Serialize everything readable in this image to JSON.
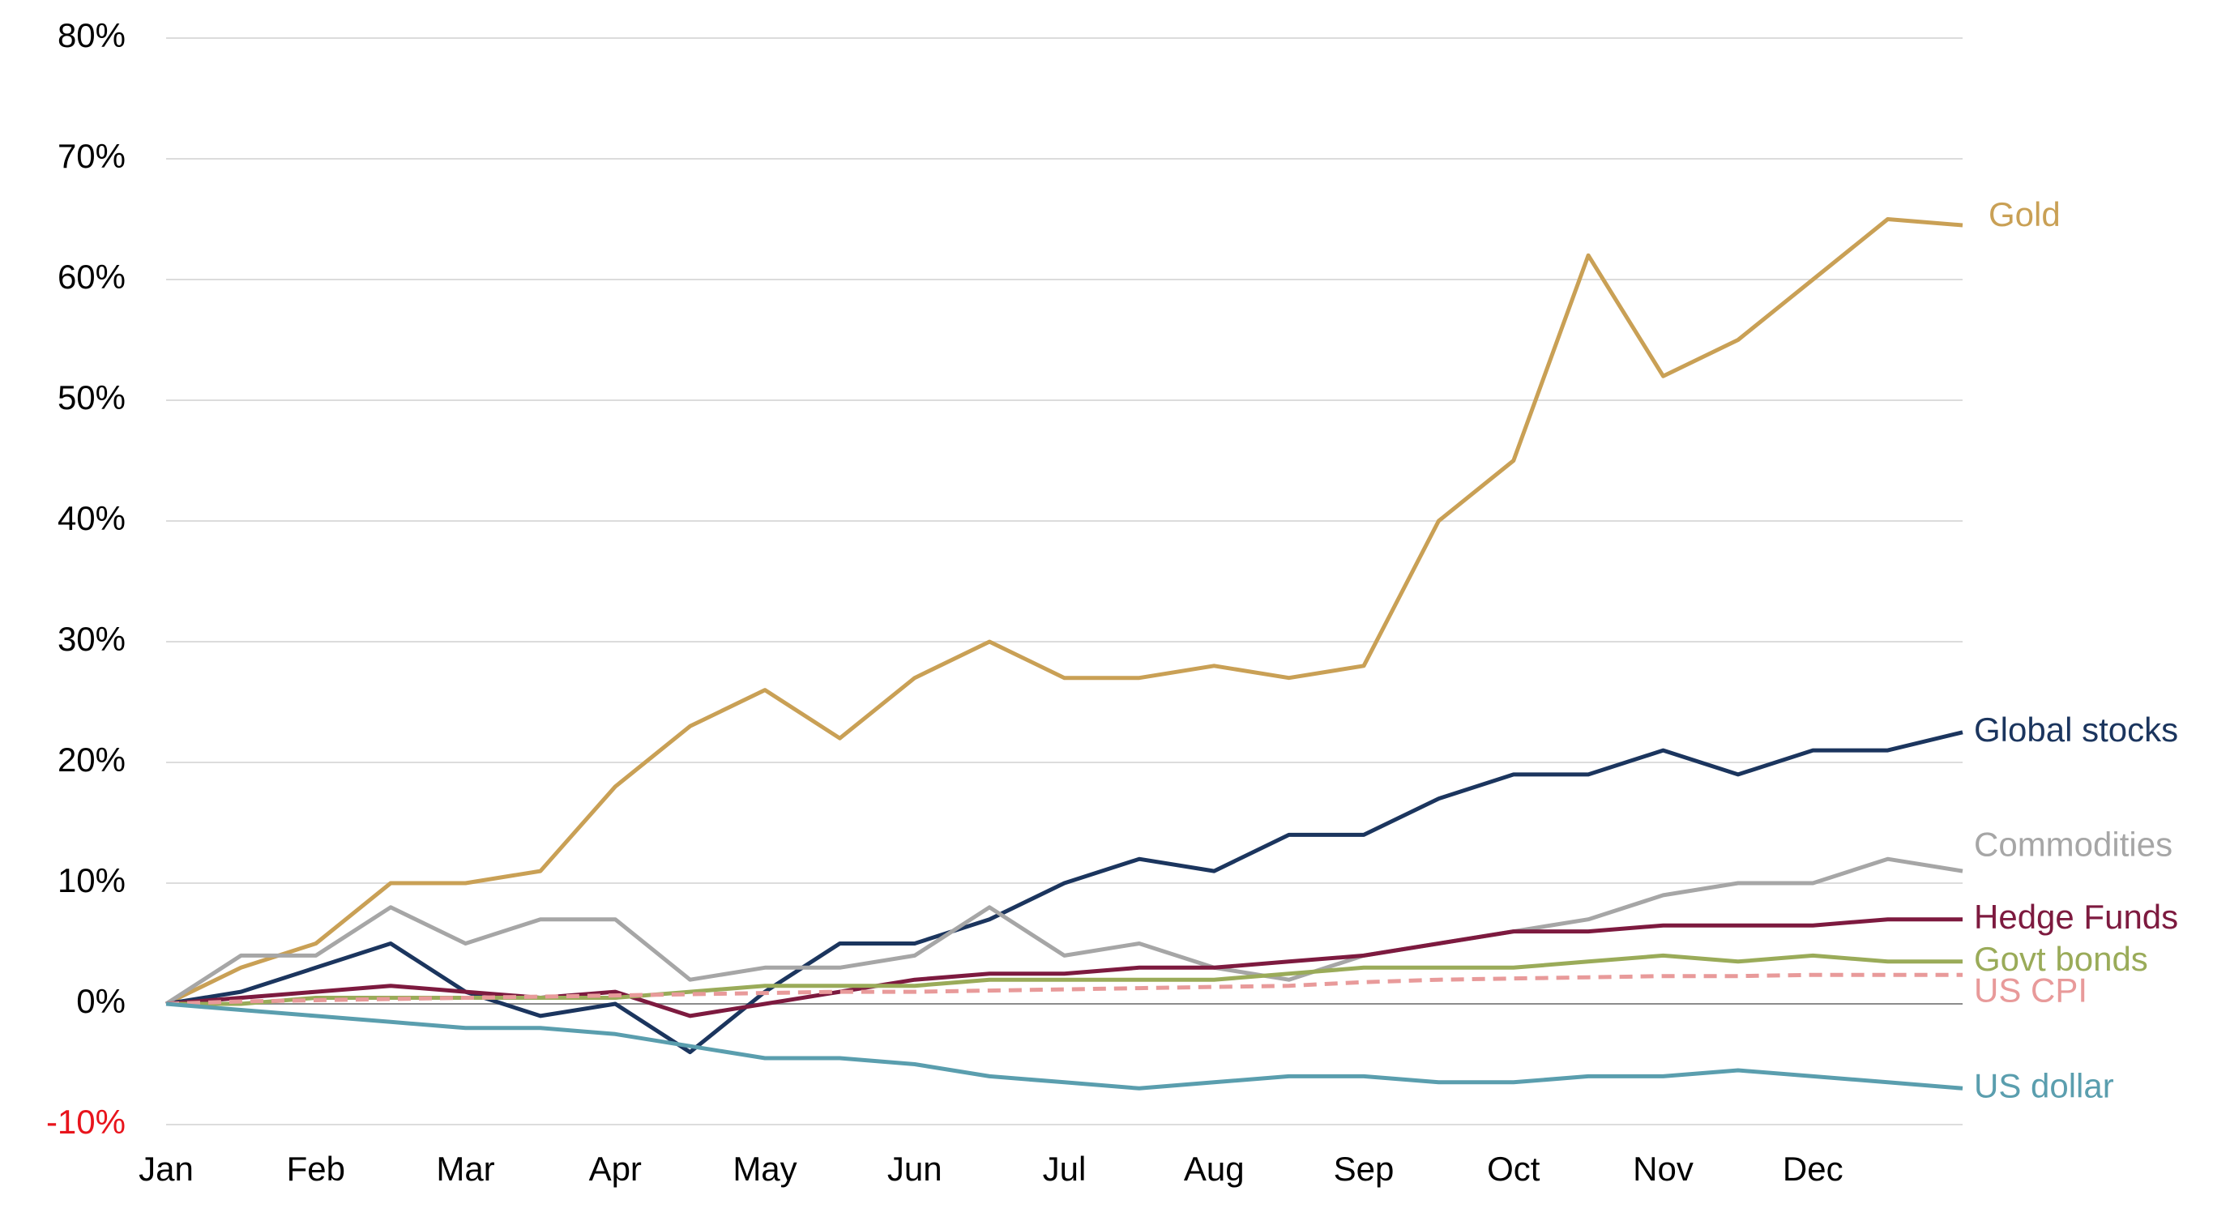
{
  "chart_data": {
    "type": "line",
    "x": [
      0,
      0.5,
      1,
      1.5,
      2,
      2.5,
      3,
      3.5,
      4,
      4.5,
      5,
      5.5,
      6,
      6.5,
      7,
      7.5,
      8,
      8.5,
      9,
      9.5,
      10,
      10.5,
      11,
      11.5,
      12
    ],
    "xlim": [
      0,
      12
    ],
    "xticks": [
      {
        "value": 0,
        "label": "Jan"
      },
      {
        "value": 1,
        "label": "Feb"
      },
      {
        "value": 2,
        "label": "Mar"
      },
      {
        "value": 3,
        "label": "Apr"
      },
      {
        "value": 4,
        "label": "May"
      },
      {
        "value": 5,
        "label": "Jun"
      },
      {
        "value": 6,
        "label": "Jul"
      },
      {
        "value": 7,
        "label": "Aug"
      },
      {
        "value": 8,
        "label": "Sep"
      },
      {
        "value": 9,
        "label": "Oct"
      },
      {
        "value": 10,
        "label": "Nov"
      },
      {
        "value": 11,
        "label": "Dec"
      }
    ],
    "ylim": [
      -10,
      80
    ],
    "yticks": [
      {
        "value": -10,
        "label": "-10%"
      },
      {
        "value": 0,
        "label": "0%"
      },
      {
        "value": 10,
        "label": "10%"
      },
      {
        "value": 20,
        "label": "20%"
      },
      {
        "value": 30,
        "label": "30%"
      },
      {
        "value": 40,
        "label": "40%"
      },
      {
        "value": 50,
        "label": "50%"
      },
      {
        "value": 60,
        "label": "60%"
      },
      {
        "value": 70,
        "label": "70%"
      },
      {
        "value": 80,
        "label": "80%"
      }
    ],
    "grid": true,
    "series": [
      {
        "name": "Gold",
        "color": "#c9a055",
        "values": [
          0,
          3,
          5,
          10,
          10,
          11,
          18,
          23,
          26,
          22,
          27,
          30,
          27,
          27,
          28,
          27,
          28,
          40,
          45,
          62,
          52,
          55,
          60,
          65,
          64.5
        ]
      },
      {
        "name": "Global stocks",
        "color": "#1b355e",
        "values": [
          0,
          1,
          3,
          5,
          1,
          -1,
          0,
          -4,
          1,
          5,
          5,
          7,
          10,
          12,
          11,
          14,
          14,
          17,
          19,
          19,
          21,
          19,
          21,
          21,
          22.5
        ]
      },
      {
        "name": "Commodities",
        "color": "#a6a6a6",
        "values": [
          0,
          4,
          4,
          8,
          5,
          7,
          7,
          2,
          3,
          3,
          4,
          8,
          4,
          5,
          3,
          2,
          4,
          5,
          6,
          7,
          9,
          10,
          10,
          12,
          11
        ]
      },
      {
        "name": "Hedge Funds",
        "color": "#7d1a3f",
        "values": [
          0,
          0.5,
          1,
          1.5,
          1,
          0.5,
          1,
          -1,
          0,
          1,
          2,
          2.5,
          2.5,
          3,
          3,
          3.5,
          4,
          5,
          6,
          6,
          6.5,
          6.5,
          6.5,
          7,
          7
        ]
      },
      {
        "name": "Govt bonds",
        "color": "#9aab59",
        "values": [
          0,
          0,
          0.5,
          0.5,
          0.5,
          0.5,
          0.5,
          1,
          1.5,
          1.5,
          1.5,
          2,
          2,
          2,
          2,
          2.5,
          3,
          3,
          3,
          3.5,
          4,
          3.5,
          4,
          3.5,
          3.5
        ]
      },
      {
        "name": "US CPI",
        "color": "#e89a9a",
        "dashed": true,
        "values": [
          0,
          0.2,
          0.3,
          0.4,
          0.5,
          0.6,
          0.7,
          0.8,
          0.9,
          1,
          1,
          1.1,
          1.2,
          1.3,
          1.4,
          1.5,
          1.8,
          2,
          2.1,
          2.2,
          2.3,
          2.3,
          2.4,
          2.4,
          2.4
        ]
      },
      {
        "name": "US dollar",
        "color": "#5a9eae",
        "values": [
          0,
          -0.5,
          -1,
          -1.5,
          -2,
          -2,
          -2.5,
          -3.5,
          -4.5,
          -4.5,
          -5,
          -6,
          -6.5,
          -7,
          -6.5,
          -6,
          -6,
          -6.5,
          -6.5,
          -6,
          -6,
          -5.5,
          -6,
          -6.5,
          -7
        ]
      }
    ]
  }
}
